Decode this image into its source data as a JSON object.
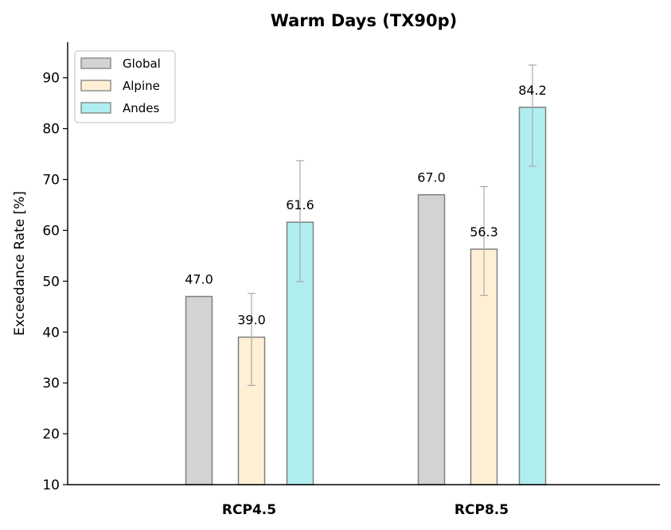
{
  "chart_data": {
    "type": "bar",
    "title": "Warm Days (TX90p)",
    "xlabel": "",
    "ylabel": "Exceedance Rate [%]",
    "categories": [
      "RCP4.5",
      "RCP8.5"
    ],
    "ylim": [
      10,
      97
    ],
    "yticks": [
      10,
      20,
      30,
      40,
      50,
      60,
      70,
      80,
      90
    ],
    "legend_position": "top-left",
    "grid": false,
    "series": [
      {
        "name": "Global",
        "color": "#d3d3d3",
        "values": [
          47.0,
          67.0
        ],
        "value_labels": [
          "47.0",
          "67.0"
        ],
        "errors": [
          null,
          null
        ]
      },
      {
        "name": "Alpine",
        "color": "#ffefd5",
        "values": [
          39.0,
          56.3
        ],
        "value_labels": [
          "39.0",
          "56.3"
        ],
        "errors": [
          [
            29.5,
            47.6
          ],
          [
            47.2,
            68.6
          ]
        ]
      },
      {
        "name": "Andes",
        "color": "#afeeee",
        "values": [
          61.6,
          84.2
        ],
        "value_labels": [
          "61.6",
          "84.2"
        ],
        "errors": [
          [
            49.9,
            73.7
          ],
          [
            72.6,
            92.5
          ]
        ]
      }
    ]
  }
}
